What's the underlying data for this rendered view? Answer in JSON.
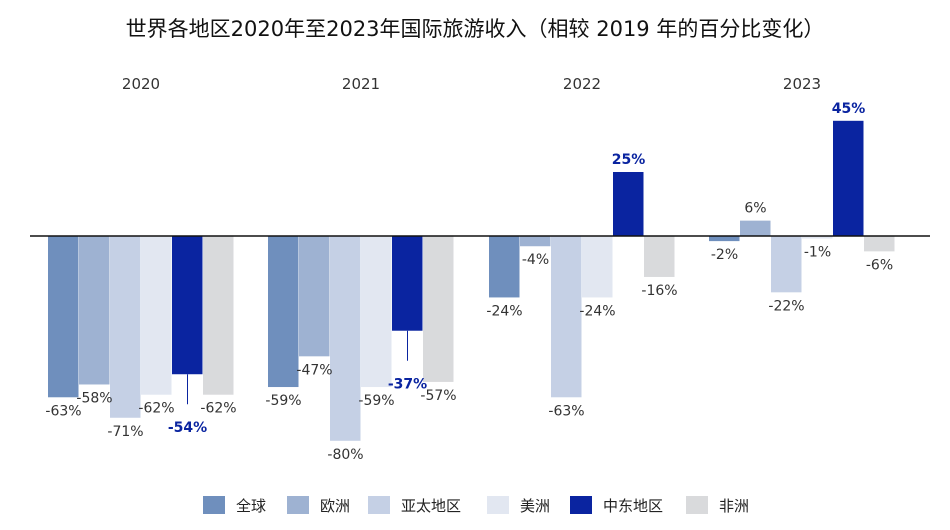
{
  "chart_data": {
    "type": "bar",
    "title": "世界各地区2020年至2023年国际旅游收入（相较 2019 年的百分比变化）",
    "xlabel": "",
    "ylabel": "",
    "unit": "%",
    "categories": [
      "2020",
      "2021",
      "2022",
      "2023"
    ],
    "series": [
      {
        "name": "全球",
        "color": "#6f8fbd",
        "values": [
          -63,
          -59,
          -24,
          -2
        ]
      },
      {
        "name": "欧洲",
        "color": "#9eb2d2",
        "values": [
          -58,
          -47,
          -4,
          6
        ]
      },
      {
        "name": "亚太地区",
        "color": "#c5d0e5",
        "values": [
          -71,
          -80,
          -63,
          -22
        ]
      },
      {
        "name": "美洲",
        "color": "#e2e7f1",
        "values": [
          -62,
          -59,
          -24,
          -1
        ]
      },
      {
        "name": "中东地区",
        "color": "#0a24a0",
        "values": [
          -54,
          -37,
          25,
          45
        ],
        "highlight": true
      },
      {
        "name": "非洲",
        "color": "#d9dadc",
        "values": [
          -62,
          -57,
          -16,
          -6
        ]
      }
    ],
    "ylim": [
      -85,
      50
    ],
    "grid": false,
    "legend_position": "bottom"
  }
}
